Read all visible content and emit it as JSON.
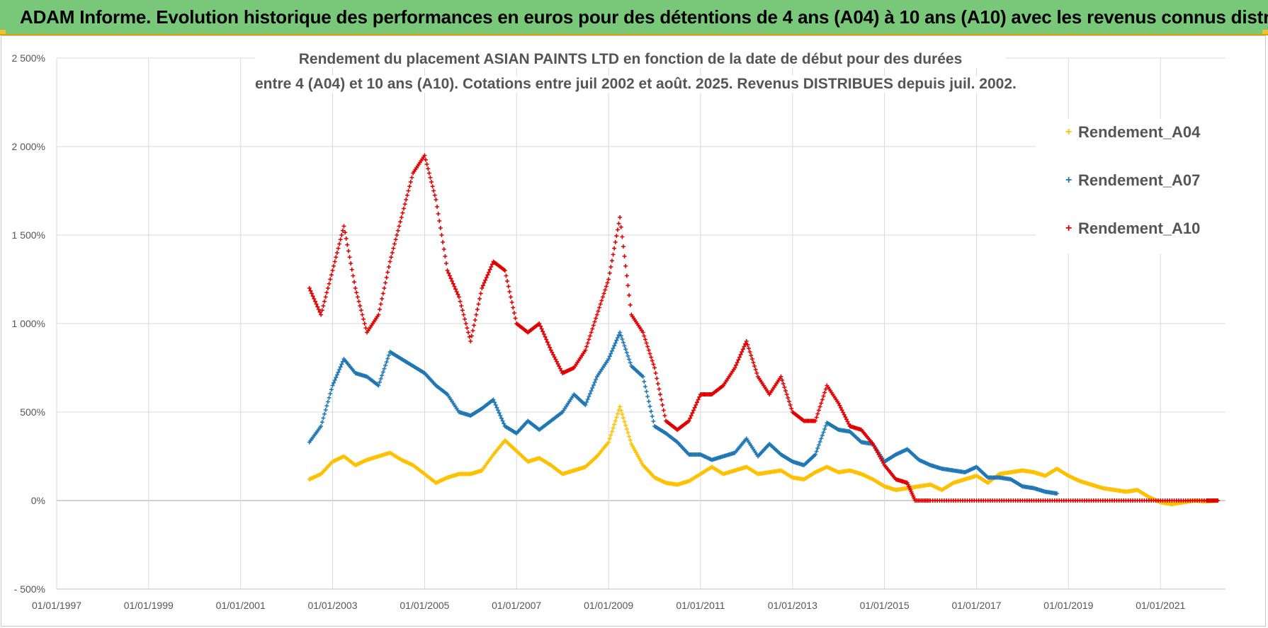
{
  "header": {
    "title": "ADAM Informe. Evolution historique des performances en euros pour des détentions de 4 ans (A04) à 10 ans (A10) avec les revenus connus distribués"
  },
  "chart_data": {
    "type": "scatter",
    "title_line1": "Rendement du placement ASIAN PAINTS LTD en fonction de la date de début pour des durées",
    "title_line2": "entre 4 (A04) et 10 ans (A10). Cotations entre juil 2002 et août. 2025. Revenus DISTRIBUES depuis juil. 2002.",
    "xlabel": "",
    "ylabel": "",
    "x_range": [
      "1997-01-01",
      "2022-06-01"
    ],
    "ylim": [
      -500,
      2500
    ],
    "y_ticks": [
      -500,
      0,
      500,
      1000,
      1500,
      2000,
      2500
    ],
    "y_tick_labels": [
      "- 500%",
      "0%",
      "500%",
      "1 000%",
      "1 500%",
      "2 000%",
      "2 500%"
    ],
    "x_tick_labels": [
      "01/01/1997",
      "01/01/1999",
      "01/01/2001",
      "01/01/2003",
      "01/01/2005",
      "01/01/2007",
      "01/01/2009",
      "01/01/2011",
      "01/01/2013",
      "01/01/2015",
      "01/01/2017",
      "01/01/2019",
      "01/01/2021"
    ],
    "grid": true,
    "legend_position": "top-right",
    "marker": "+",
    "series": [
      {
        "name": "Rendement_A04",
        "color": "#ffc000",
        "points": [
          [
            "2002-07-01",
            120
          ],
          [
            "2002-10-01",
            150
          ],
          [
            "2003-01-01",
            220
          ],
          [
            "2003-04-01",
            250
          ],
          [
            "2003-07-01",
            200
          ],
          [
            "2003-10-01",
            230
          ],
          [
            "2004-01-01",
            250
          ],
          [
            "2004-04-01",
            270
          ],
          [
            "2004-07-01",
            230
          ],
          [
            "2004-10-01",
            200
          ],
          [
            "2005-01-01",
            150
          ],
          [
            "2005-04-01",
            100
          ],
          [
            "2005-07-01",
            130
          ],
          [
            "2005-10-01",
            150
          ],
          [
            "2006-01-01",
            150
          ],
          [
            "2006-04-01",
            170
          ],
          [
            "2006-07-01",
            260
          ],
          [
            "2006-10-01",
            340
          ],
          [
            "2007-01-01",
            280
          ],
          [
            "2007-04-01",
            220
          ],
          [
            "2007-07-01",
            240
          ],
          [
            "2007-10-01",
            200
          ],
          [
            "2008-01-01",
            150
          ],
          [
            "2008-04-01",
            170
          ],
          [
            "2008-07-01",
            190
          ],
          [
            "2008-10-01",
            250
          ],
          [
            "2009-01-01",
            330
          ],
          [
            "2009-04-01",
            530
          ],
          [
            "2009-07-01",
            320
          ],
          [
            "2009-10-01",
            200
          ],
          [
            "2010-01-01",
            130
          ],
          [
            "2010-04-01",
            100
          ],
          [
            "2010-07-01",
            90
          ],
          [
            "2010-10-01",
            110
          ],
          [
            "2011-01-01",
            150
          ],
          [
            "2011-04-01",
            190
          ],
          [
            "2011-07-01",
            150
          ],
          [
            "2011-10-01",
            170
          ],
          [
            "2012-01-01",
            190
          ],
          [
            "2012-04-01",
            150
          ],
          [
            "2012-07-01",
            160
          ],
          [
            "2012-10-01",
            170
          ],
          [
            "2013-01-01",
            130
          ],
          [
            "2013-04-01",
            120
          ],
          [
            "2013-07-01",
            160
          ],
          [
            "2013-10-01",
            190
          ],
          [
            "2014-01-01",
            160
          ],
          [
            "2014-04-01",
            170
          ],
          [
            "2014-07-01",
            150
          ],
          [
            "2014-10-01",
            120
          ],
          [
            "2015-01-01",
            80
          ],
          [
            "2015-04-01",
            60
          ],
          [
            "2015-07-01",
            70
          ],
          [
            "2015-10-01",
            80
          ],
          [
            "2016-01-01",
            90
          ],
          [
            "2016-04-01",
            60
          ],
          [
            "2016-07-01",
            100
          ],
          [
            "2016-10-01",
            120
          ],
          [
            "2017-01-01",
            140
          ],
          [
            "2017-04-01",
            100
          ],
          [
            "2017-07-01",
            150
          ],
          [
            "2017-10-01",
            160
          ],
          [
            "2018-01-01",
            170
          ],
          [
            "2018-04-01",
            160
          ],
          [
            "2018-07-01",
            140
          ],
          [
            "2018-10-01",
            180
          ],
          [
            "2019-01-01",
            140
          ],
          [
            "2019-04-01",
            110
          ],
          [
            "2019-07-01",
            90
          ],
          [
            "2019-10-01",
            70
          ],
          [
            "2020-01-01",
            60
          ],
          [
            "2020-04-01",
            50
          ],
          [
            "2020-07-01",
            60
          ],
          [
            "2020-10-01",
            20
          ],
          [
            "2021-01-01",
            -10
          ],
          [
            "2021-04-01",
            -20
          ],
          [
            "2021-07-01",
            -10
          ],
          [
            "2021-10-01",
            0
          ],
          [
            "2022-01-01",
            -5
          ],
          [
            "2022-04-01",
            0
          ]
        ]
      },
      {
        "name": "Rendement_A07",
        "color": "#1f77b4",
        "points": [
          [
            "2002-07-01",
            330
          ],
          [
            "2002-10-01",
            420
          ],
          [
            "2003-01-01",
            650
          ],
          [
            "2003-04-01",
            800
          ],
          [
            "2003-07-01",
            720
          ],
          [
            "2003-10-01",
            700
          ],
          [
            "2004-01-01",
            650
          ],
          [
            "2004-04-01",
            840
          ],
          [
            "2004-07-01",
            800
          ],
          [
            "2004-10-01",
            760
          ],
          [
            "2005-01-01",
            720
          ],
          [
            "2005-04-01",
            650
          ],
          [
            "2005-07-01",
            600
          ],
          [
            "2005-10-01",
            500
          ],
          [
            "2006-01-01",
            480
          ],
          [
            "2006-04-01",
            520
          ],
          [
            "2006-07-01",
            570
          ],
          [
            "2006-10-01",
            420
          ],
          [
            "2007-01-01",
            380
          ],
          [
            "2007-04-01",
            450
          ],
          [
            "2007-07-01",
            400
          ],
          [
            "2007-10-01",
            450
          ],
          [
            "2008-01-01",
            500
          ],
          [
            "2008-04-01",
            600
          ],
          [
            "2008-07-01",
            540
          ],
          [
            "2008-10-01",
            700
          ],
          [
            "2009-01-01",
            800
          ],
          [
            "2009-04-01",
            950
          ],
          [
            "2009-07-01",
            760
          ],
          [
            "2009-10-01",
            700
          ],
          [
            "2010-01-01",
            420
          ],
          [
            "2010-04-01",
            380
          ],
          [
            "2010-07-01",
            330
          ],
          [
            "2010-10-01",
            260
          ],
          [
            "2011-01-01",
            260
          ],
          [
            "2011-04-01",
            230
          ],
          [
            "2011-07-01",
            250
          ],
          [
            "2011-10-01",
            270
          ],
          [
            "2012-01-01",
            350
          ],
          [
            "2012-04-01",
            250
          ],
          [
            "2012-07-01",
            320
          ],
          [
            "2012-10-01",
            260
          ],
          [
            "2013-01-01",
            220
          ],
          [
            "2013-04-01",
            200
          ],
          [
            "2013-07-01",
            260
          ],
          [
            "2013-10-01",
            440
          ],
          [
            "2014-01-01",
            400
          ],
          [
            "2014-04-01",
            390
          ],
          [
            "2014-07-01",
            330
          ],
          [
            "2014-10-01",
            320
          ],
          [
            "2015-01-01",
            220
          ],
          [
            "2015-04-01",
            260
          ],
          [
            "2015-07-01",
            290
          ],
          [
            "2015-10-01",
            230
          ],
          [
            "2016-01-01",
            200
          ],
          [
            "2016-04-01",
            180
          ],
          [
            "2016-07-01",
            170
          ],
          [
            "2016-10-01",
            160
          ],
          [
            "2017-01-01",
            190
          ],
          [
            "2017-04-01",
            130
          ],
          [
            "2017-07-01",
            130
          ],
          [
            "2017-10-01",
            120
          ],
          [
            "2018-01-01",
            80
          ],
          [
            "2018-04-01",
            70
          ],
          [
            "2018-07-01",
            50
          ],
          [
            "2018-10-01",
            40
          ]
        ]
      },
      {
        "name": "Rendement_A10",
        "color": "#e00000",
        "points": [
          [
            "2002-07-01",
            1200
          ],
          [
            "2002-10-01",
            1050
          ],
          [
            "2003-01-01",
            1300
          ],
          [
            "2003-04-01",
            1550
          ],
          [
            "2003-07-01",
            1200
          ],
          [
            "2003-10-01",
            950
          ],
          [
            "2004-01-01",
            1050
          ],
          [
            "2004-04-01",
            1350
          ],
          [
            "2004-07-01",
            1600
          ],
          [
            "2004-10-01",
            1850
          ],
          [
            "2005-01-01",
            1950
          ],
          [
            "2005-04-01",
            1700
          ],
          [
            "2005-07-01",
            1300
          ],
          [
            "2005-10-01",
            1150
          ],
          [
            "2006-01-01",
            900
          ],
          [
            "2006-04-01",
            1200
          ],
          [
            "2006-07-01",
            1350
          ],
          [
            "2006-10-01",
            1300
          ],
          [
            "2007-01-01",
            1000
          ],
          [
            "2007-04-01",
            950
          ],
          [
            "2007-07-01",
            1000
          ],
          [
            "2007-10-01",
            850
          ],
          [
            "2008-01-01",
            720
          ],
          [
            "2008-04-01",
            750
          ],
          [
            "2008-07-01",
            850
          ],
          [
            "2008-10-01",
            1050
          ],
          [
            "2009-01-01",
            1250
          ],
          [
            "2009-04-01",
            1600
          ],
          [
            "2009-07-01",
            1050
          ],
          [
            "2009-10-01",
            950
          ],
          [
            "2010-01-01",
            750
          ],
          [
            "2010-04-01",
            450
          ],
          [
            "2010-07-01",
            400
          ],
          [
            "2010-10-01",
            450
          ],
          [
            "2011-01-01",
            600
          ],
          [
            "2011-04-01",
            600
          ],
          [
            "2011-07-01",
            650
          ],
          [
            "2011-10-01",
            750
          ],
          [
            "2012-01-01",
            900
          ],
          [
            "2012-04-01",
            700
          ],
          [
            "2012-07-01",
            600
          ],
          [
            "2012-10-01",
            700
          ],
          [
            "2013-01-01",
            500
          ],
          [
            "2013-04-01",
            450
          ],
          [
            "2013-07-01",
            450
          ],
          [
            "2013-10-01",
            650
          ],
          [
            "2014-01-01",
            550
          ],
          [
            "2014-04-01",
            420
          ],
          [
            "2014-07-01",
            400
          ],
          [
            "2014-10-01",
            320
          ],
          [
            "2015-01-01",
            200
          ],
          [
            "2015-04-01",
            120
          ],
          [
            "2015-07-01",
            100
          ],
          [
            "2015-09-01",
            0
          ],
          [
            "2016-01-01",
            0
          ],
          [
            "2016-07-01",
            0
          ],
          [
            "2017-01-01",
            0
          ],
          [
            "2017-07-01",
            0
          ],
          [
            "2018-01-01",
            0
          ],
          [
            "2018-07-01",
            0
          ],
          [
            "2019-01-01",
            0
          ],
          [
            "2019-07-01",
            0
          ],
          [
            "2020-01-01",
            0
          ],
          [
            "2020-07-01",
            0
          ],
          [
            "2021-01-01",
            0
          ],
          [
            "2021-07-01",
            0
          ],
          [
            "2022-01-01",
            0
          ],
          [
            "2022-04-01",
            0
          ]
        ]
      }
    ]
  }
}
